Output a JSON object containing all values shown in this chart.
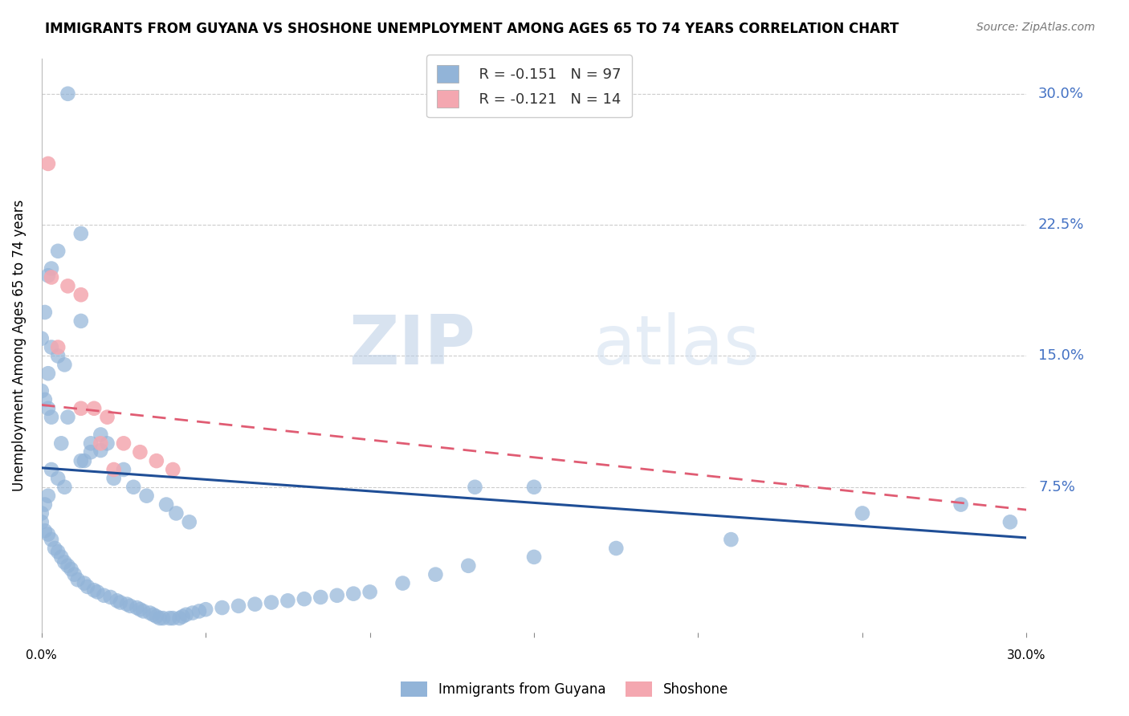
{
  "title": "IMMIGRANTS FROM GUYANA VS SHOSHONE UNEMPLOYMENT AMONG AGES 65 TO 74 YEARS CORRELATION CHART",
  "source": "Source: ZipAtlas.com",
  "ylabel": "Unemployment Among Ages 65 to 74 years",
  "xlim": [
    0.0,
    0.3
  ],
  "ylim": [
    -0.008,
    0.32
  ],
  "yticks": [
    0.0,
    0.075,
    0.15,
    0.225,
    0.3
  ],
  "xticks": [
    0.0,
    0.05,
    0.1,
    0.15,
    0.2,
    0.25,
    0.3
  ],
  "legend_r1": "R = -0.151",
  "legend_n1": "N = 97",
  "legend_r2": "R = -0.121",
  "legend_n2": "N = 14",
  "legend_label1": "Immigrants from Guyana",
  "legend_label2": "Shoshone",
  "blue_color": "#92b4d8",
  "blue_line_color": "#1f4e96",
  "pink_color": "#f4a7b0",
  "pink_line_color": "#e05c73",
  "right_axis_color": "#4472c4",
  "watermark_zip": "ZIP",
  "watermark_atlas": "atlas",
  "blue_scatter_x": [
    0.008,
    0.012,
    0.005,
    0.003,
    0.002,
    0.001,
    0.0,
    0.003,
    0.005,
    0.007,
    0.002,
    0.0,
    0.001,
    0.002,
    0.003,
    0.012,
    0.015,
    0.018,
    0.013,
    0.025,
    0.022,
    0.028,
    0.032,
    0.038,
    0.041,
    0.045,
    0.018,
    0.02,
    0.015,
    0.012,
    0.003,
    0.005,
    0.007,
    0.002,
    0.001,
    0.0,
    0.0,
    0.001,
    0.002,
    0.003,
    0.004,
    0.005,
    0.006,
    0.007,
    0.008,
    0.009,
    0.01,
    0.011,
    0.013,
    0.014,
    0.016,
    0.017,
    0.019,
    0.021,
    0.023,
    0.024,
    0.026,
    0.027,
    0.029,
    0.03,
    0.031,
    0.033,
    0.034,
    0.035,
    0.036,
    0.037,
    0.039,
    0.04,
    0.042,
    0.043,
    0.044,
    0.046,
    0.048,
    0.05,
    0.055,
    0.06,
    0.065,
    0.07,
    0.075,
    0.08,
    0.085,
    0.09,
    0.095,
    0.1,
    0.11,
    0.12,
    0.13,
    0.15,
    0.175,
    0.21,
    0.25,
    0.28,
    0.295,
    0.132,
    0.006,
    0.008,
    0.15
  ],
  "blue_scatter_y": [
    0.3,
    0.22,
    0.21,
    0.2,
    0.196,
    0.175,
    0.16,
    0.155,
    0.15,
    0.145,
    0.14,
    0.13,
    0.125,
    0.12,
    0.115,
    0.17,
    0.1,
    0.096,
    0.09,
    0.085,
    0.08,
    0.075,
    0.07,
    0.065,
    0.06,
    0.055,
    0.105,
    0.1,
    0.095,
    0.09,
    0.085,
    0.08,
    0.075,
    0.07,
    0.065,
    0.06,
    0.055,
    0.05,
    0.048,
    0.045,
    0.04,
    0.038,
    0.035,
    0.032,
    0.03,
    0.028,
    0.025,
    0.022,
    0.02,
    0.018,
    0.016,
    0.015,
    0.013,
    0.012,
    0.01,
    0.009,
    0.008,
    0.007,
    0.006,
    0.005,
    0.004,
    0.003,
    0.002,
    0.001,
    0.0,
    0.0,
    0.0,
    0.0,
    0.0,
    0.001,
    0.002,
    0.003,
    0.004,
    0.005,
    0.006,
    0.007,
    0.008,
    0.009,
    0.01,
    0.011,
    0.012,
    0.013,
    0.014,
    0.015,
    0.02,
    0.025,
    0.03,
    0.035,
    0.04,
    0.045,
    0.06,
    0.065,
    0.055,
    0.075,
    0.1,
    0.115,
    0.075
  ],
  "pink_scatter_x": [
    0.002,
    0.003,
    0.008,
    0.012,
    0.016,
    0.02,
    0.025,
    0.03,
    0.035,
    0.04,
    0.012,
    0.018,
    0.022,
    0.005
  ],
  "pink_scatter_y": [
    0.26,
    0.195,
    0.19,
    0.185,
    0.12,
    0.115,
    0.1,
    0.095,
    0.09,
    0.085,
    0.12,
    0.1,
    0.085,
    0.155
  ],
  "blue_line_x": [
    0.0,
    0.3
  ],
  "blue_line_y_start": 0.086,
  "blue_line_y_end": 0.046,
  "pink_line_x": [
    0.0,
    0.3
  ],
  "pink_line_y_start": 0.122,
  "pink_line_y_end": 0.062
}
